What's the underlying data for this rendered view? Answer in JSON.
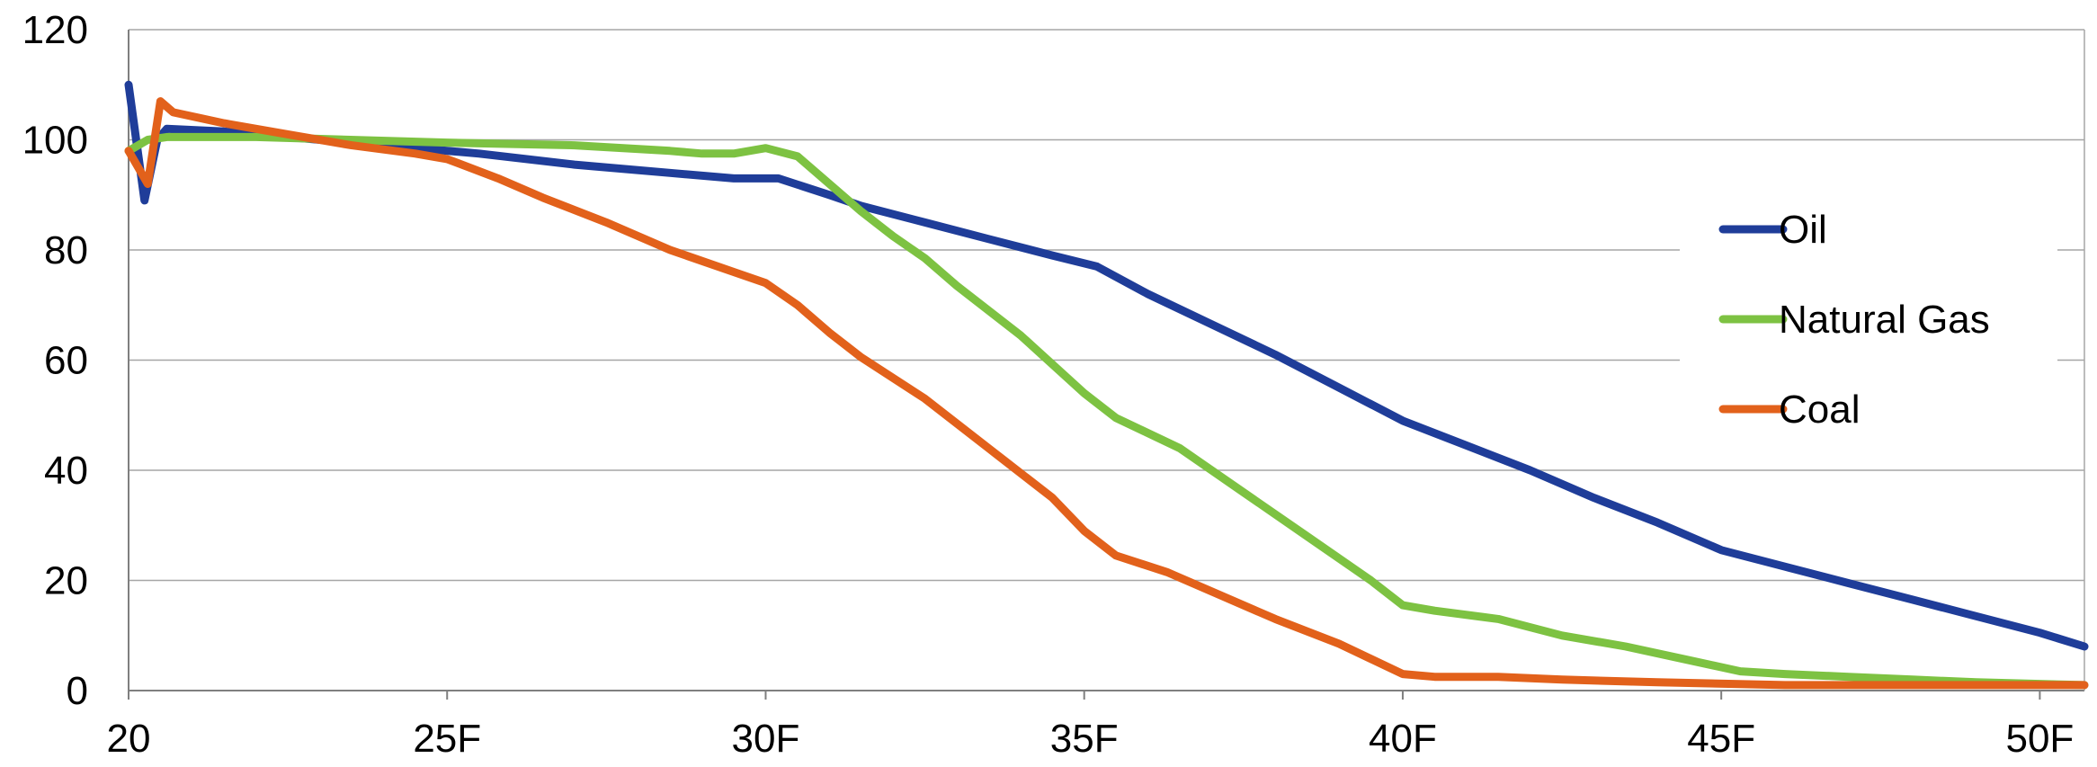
{
  "chart_data": {
    "type": "line",
    "title": "",
    "xlabel": "",
    "ylabel": "",
    "xlim": [
      20,
      50.7
    ],
    "ylim": [
      0,
      120
    ],
    "yticks": [
      0,
      20,
      40,
      60,
      80,
      100,
      120
    ],
    "ytick_labels": [
      "0",
      "20",
      "40",
      "60",
      "80",
      "100",
      "120"
    ],
    "xticks": [
      20,
      25,
      30,
      35,
      40,
      45,
      50
    ],
    "xtick_labels": [
      "20",
      "25F",
      "30F",
      "35F",
      "40F",
      "45F",
      "50F"
    ],
    "grid": true,
    "legend_position": "right",
    "series": [
      {
        "name": "Oil",
        "color": "#1f3d99",
        "points": [
          [
            20,
            110
          ],
          [
            20.25,
            89
          ],
          [
            20.45,
            100
          ],
          [
            20.6,
            102
          ],
          [
            21.5,
            101.5
          ],
          [
            22.5,
            100.5
          ],
          [
            24,
            99
          ],
          [
            25.5,
            97.5
          ],
          [
            27,
            95.5
          ],
          [
            28.5,
            94
          ],
          [
            29.5,
            93
          ],
          [
            30.2,
            93
          ],
          [
            31,
            90
          ],
          [
            31.5,
            88
          ],
          [
            32.5,
            85
          ],
          [
            33.5,
            82
          ],
          [
            34.5,
            79
          ],
          [
            35.2,
            77
          ],
          [
            36,
            72
          ],
          [
            37,
            66.5
          ],
          [
            38,
            61
          ],
          [
            39,
            55
          ],
          [
            40,
            49
          ],
          [
            41,
            44.5
          ],
          [
            42,
            40
          ],
          [
            43,
            35
          ],
          [
            44,
            30.5
          ],
          [
            45,
            25.5
          ],
          [
            46,
            22.5
          ],
          [
            47,
            19.5
          ],
          [
            48,
            16.5
          ],
          [
            49,
            13.5
          ],
          [
            50,
            10.5
          ],
          [
            50.7,
            8
          ]
        ]
      },
      {
        "name": "Natural Gas",
        "color": "#7dc242",
        "points": [
          [
            20,
            98
          ],
          [
            20.3,
            100
          ],
          [
            20.6,
            100.5
          ],
          [
            22,
            100.5
          ],
          [
            25,
            99.5
          ],
          [
            27,
            99
          ],
          [
            28.5,
            98
          ],
          [
            29,
            97.5
          ],
          [
            29.5,
            97.5
          ],
          [
            30,
            98.5
          ],
          [
            30.5,
            97
          ],
          [
            31,
            92
          ],
          [
            31.5,
            87
          ],
          [
            32,
            82.5
          ],
          [
            32.5,
            78.5
          ],
          [
            33,
            73.5
          ],
          [
            34,
            64.5
          ],
          [
            35,
            54
          ],
          [
            35.5,
            49.5
          ],
          [
            36.5,
            44
          ],
          [
            37.5,
            36
          ],
          [
            38.5,
            28
          ],
          [
            39.5,
            20
          ],
          [
            40,
            15.5
          ],
          [
            40.5,
            14.5
          ],
          [
            41.5,
            13
          ],
          [
            42.5,
            10
          ],
          [
            43.5,
            8
          ],
          [
            44.5,
            5.5
          ],
          [
            45.3,
            3.5
          ],
          [
            46,
            3
          ],
          [
            47,
            2.5
          ],
          [
            48,
            2
          ],
          [
            49,
            1.5
          ],
          [
            50.7,
            1
          ]
        ]
      },
      {
        "name": "Coal",
        "color": "#e2611b",
        "points": [
          [
            20,
            98
          ],
          [
            20.3,
            92
          ],
          [
            20.5,
            107
          ],
          [
            20.7,
            105
          ],
          [
            21.5,
            103
          ],
          [
            22.5,
            101
          ],
          [
            23.5,
            99
          ],
          [
            24.5,
            97.5
          ],
          [
            25,
            96.5
          ],
          [
            25.8,
            93
          ],
          [
            26.5,
            89.5
          ],
          [
            27.5,
            85
          ],
          [
            28.5,
            80
          ],
          [
            29.5,
            76
          ],
          [
            30,
            74
          ],
          [
            30.5,
            70
          ],
          [
            31,
            65
          ],
          [
            31.5,
            60.5
          ],
          [
            32.5,
            53
          ],
          [
            33.5,
            44
          ],
          [
            34.5,
            35
          ],
          [
            35,
            29
          ],
          [
            35.5,
            24.5
          ],
          [
            36.3,
            21.5
          ],
          [
            37,
            18
          ],
          [
            38,
            13
          ],
          [
            39,
            8.5
          ],
          [
            40,
            3
          ],
          [
            40.5,
            2.5
          ],
          [
            41.5,
            2.5
          ],
          [
            42.5,
            2
          ],
          [
            44,
            1.5
          ],
          [
            46,
            1
          ],
          [
            48,
            1
          ],
          [
            50.7,
            1
          ]
        ]
      }
    ]
  }
}
